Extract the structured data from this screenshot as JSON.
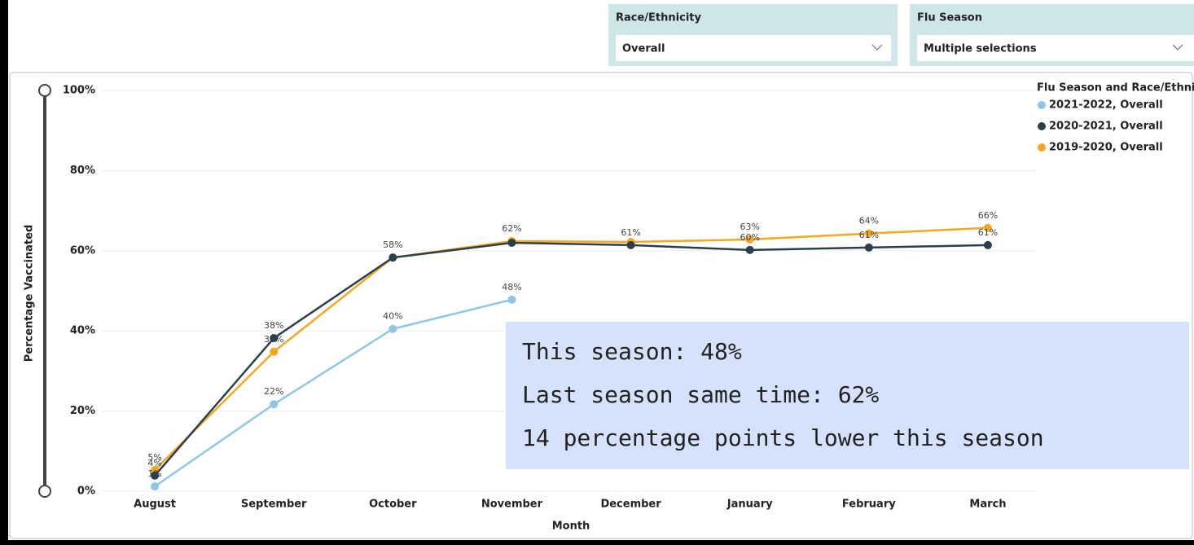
{
  "slicers": [
    {
      "label": "Race/Ethnicity",
      "selection": "Overall"
    },
    {
      "label": "Flu Season",
      "selection": "Multiple selections"
    }
  ],
  "chart_data": {
    "type": "line",
    "ylabel": "Percentage Vaccinated",
    "xlabel": "Month",
    "legend_title": "Flu Season and Race/Ethnicity",
    "legend": "top-right",
    "grid": true,
    "categories": [
      "August",
      "September",
      "October",
      "November",
      "December",
      "January",
      "February",
      "March"
    ],
    "ylim": [
      0,
      100
    ],
    "yticks": [
      {
        "value": 0,
        "label": "0%"
      },
      {
        "value": 20,
        "label": "20%"
      },
      {
        "value": 40,
        "label": "40%"
      },
      {
        "value": 60,
        "label": "60%"
      },
      {
        "value": 80,
        "label": "80%"
      },
      {
        "value": 100,
        "label": "100%"
      }
    ],
    "series": [
      {
        "name": "2021-2022, Overall",
        "color": "#8ec6e8",
        "values": [
          1.2,
          21.7,
          40.5,
          47.8,
          null,
          null,
          null,
          null
        ],
        "value_labels": [
          "1%",
          "22%",
          "40%",
          "48%",
          null,
          null,
          null,
          null
        ]
      },
      {
        "name": "2020-2021, Overall",
        "color": "#2b3f4a",
        "values": [
          3.9,
          38.2,
          58.3,
          62.0,
          61.4,
          60.2,
          60.8,
          61.4
        ],
        "value_labels": [
          "4%",
          "38%",
          null,
          null,
          "61%",
          "60%",
          "61%",
          "61%"
        ]
      },
      {
        "name": "2019-2020, Overall",
        "color": "#f5a623",
        "values": [
          5.3,
          34.8,
          58.3,
          62.4,
          62.2,
          62.8,
          64.3,
          65.7
        ],
        "value_labels": [
          "5%",
          "35%",
          "58%",
          "62%",
          null,
          "63%",
          "64%",
          "66%"
        ]
      }
    ],
    "annotation": [
      "This season: 48%",
      "Last season same time: 62%",
      "14 percentage points lower this season"
    ]
  }
}
